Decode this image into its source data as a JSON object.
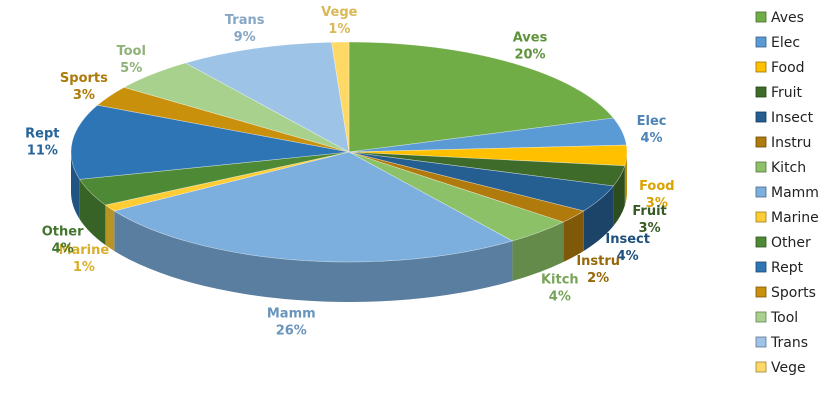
{
  "chart_data": {
    "type": "pie",
    "title": "",
    "legend_position": "right",
    "slices": [
      {
        "label": "Aves",
        "value": 20,
        "pct_label": "20%",
        "color": "#70ad47"
      },
      {
        "label": "Elec",
        "value": 4,
        "pct_label": "4%",
        "color": "#5b9bd5"
      },
      {
        "label": "Food",
        "value": 3,
        "pct_label": "3%",
        "color": "#ffc000"
      },
      {
        "label": "Fruit",
        "value": 3,
        "pct_label": "3%",
        "color": "#3f6b2a"
      },
      {
        "label": "Insect",
        "value": 4,
        "pct_label": "4%",
        "color": "#255e91"
      },
      {
        "label": "Instru",
        "value": 2,
        "pct_label": "2%",
        "color": "#b07a0c"
      },
      {
        "label": "Kitch",
        "value": 4,
        "pct_label": "4%",
        "color": "#8cc168"
      },
      {
        "label": "Mamm",
        "value": 26,
        "pct_label": "26%",
        "color": "#7cafdd"
      },
      {
        "label": "Marine",
        "value": 1,
        "pct_label": "1%",
        "color": "#ffcd33"
      },
      {
        "label": "Other",
        "value": 4,
        "pct_label": "4%",
        "color": "#4e8a35"
      },
      {
        "label": "Rept",
        "value": 11,
        "pct_label": "11%",
        "color": "#2e75b6"
      },
      {
        "label": "Sports",
        "value": 3,
        "pct_label": "3%",
        "color": "#c9900b"
      },
      {
        "label": "Tool",
        "value": 5,
        "pct_label": "5%",
        "color": "#a9d18e"
      },
      {
        "label": "Trans",
        "value": 9,
        "pct_label": "9%",
        "color": "#9dc3e6"
      },
      {
        "label": "Vege",
        "value": 1,
        "pct_label": "1%",
        "color": "#ffd966"
      }
    ]
  }
}
